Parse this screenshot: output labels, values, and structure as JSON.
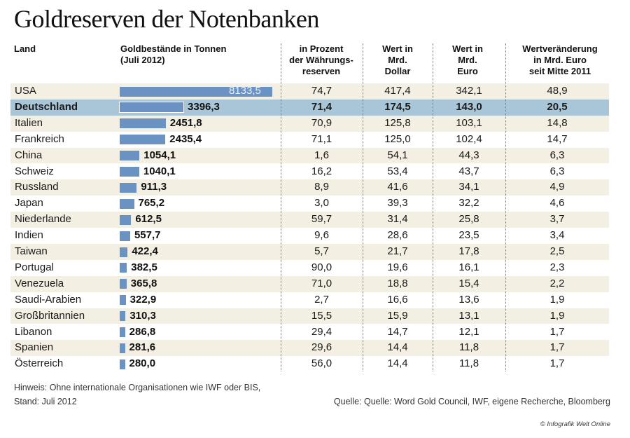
{
  "title": "Goldreserven der Notenbanken",
  "headers": {
    "land": "Land",
    "gold_line1": "Goldbestände in Tonnen",
    "gold_line2": "(Juli 2012)",
    "pct_line1": "in Prozent",
    "pct_line2": "der Währungs-",
    "pct_line3": "reserven",
    "usd_line1": "Wert in",
    "usd_line2": "Mrd.",
    "usd_line3": "Dollar",
    "eur_line1": "Wert in",
    "eur_line2": "Mrd.",
    "eur_line3": "Euro",
    "chg_line1": "Wertveränderung",
    "chg_line2": "in Mrd. Euro",
    "chg_line3": "seit Mitte 2011"
  },
  "chart_data": {
    "type": "table",
    "columns": [
      "Land",
      "Goldbestände in Tonnen (Juli 2012)",
      "in Prozent der Währungsreserven",
      "Wert in Mrd. Dollar",
      "Wert in Mrd. Euro",
      "Wertveränderung in Mrd. Euro seit Mitte 2011"
    ],
    "rows": [
      {
        "land": "USA",
        "tonnen": 8133.5,
        "tonnen_label": "8133,5",
        "prozent": "74,7",
        "dollar": "417,4",
        "euro": "342,1",
        "veraenderung": "48,9"
      },
      {
        "land": "Deutschland",
        "tonnen": 3396.3,
        "tonnen_label": "3396,3",
        "prozent": "71,4",
        "dollar": "174,5",
        "euro": "143,0",
        "veraenderung": "20,5",
        "highlight": true
      },
      {
        "land": "Italien",
        "tonnen": 2451.8,
        "tonnen_label": "2451,8",
        "prozent": "70,9",
        "dollar": "125,8",
        "euro": "103,1",
        "veraenderung": "14,8"
      },
      {
        "land": "Frankreich",
        "tonnen": 2435.4,
        "tonnen_label": "2435,4",
        "prozent": "71,1",
        "dollar": "125,0",
        "euro": "102,4",
        "veraenderung": "14,7"
      },
      {
        "land": "China",
        "tonnen": 1054.1,
        "tonnen_label": "1054,1",
        "prozent": "1,6",
        "dollar": "54,1",
        "euro": "44,3",
        "veraenderung": "6,3"
      },
      {
        "land": "Schweiz",
        "tonnen": 1040.1,
        "tonnen_label": "1040,1",
        "prozent": "16,2",
        "dollar": "53,4",
        "euro": "43,7",
        "veraenderung": "6,3"
      },
      {
        "land": "Russland",
        "tonnen": 911.3,
        "tonnen_label": "911,3",
        "prozent": "8,9",
        "dollar": "41,6",
        "euro": "34,1",
        "veraenderung": "4,9"
      },
      {
        "land": "Japan",
        "tonnen": 765.2,
        "tonnen_label": "765,2",
        "prozent": "3,0",
        "dollar": "39,3",
        "euro": "32,2",
        "veraenderung": "4,6"
      },
      {
        "land": "Niederlande",
        "tonnen": 612.5,
        "tonnen_label": "612,5",
        "prozent": "59,7",
        "dollar": "31,4",
        "euro": "25,8",
        "veraenderung": "3,7"
      },
      {
        "land": "Indien",
        "tonnen": 557.7,
        "tonnen_label": "557,7",
        "prozent": "9,6",
        "dollar": "28,6",
        "euro": "23,5",
        "veraenderung": "3,4"
      },
      {
        "land": "Taiwan",
        "tonnen": 422.4,
        "tonnen_label": "422,4",
        "prozent": "5,7",
        "dollar": "21,7",
        "euro": "17,8",
        "veraenderung": "2,5"
      },
      {
        "land": "Portugal",
        "tonnen": 382.5,
        "tonnen_label": "382,5",
        "prozent": "90,0",
        "dollar": "19,6",
        "euro": "16,1",
        "veraenderung": "2,3"
      },
      {
        "land": "Venezuela",
        "tonnen": 365.8,
        "tonnen_label": "365,8",
        "prozent": "71,0",
        "dollar": "18,8",
        "euro": "15,4",
        "veraenderung": "2,2"
      },
      {
        "land": "Saudi-Arabien",
        "tonnen": 322.9,
        "tonnen_label": "322,9",
        "prozent": "2,7",
        "dollar": "16,6",
        "euro": "13,6",
        "veraenderung": "1,9"
      },
      {
        "land": "Großbritannien",
        "tonnen": 310.3,
        "tonnen_label": "310,3",
        "prozent": "15,5",
        "dollar": "15,9",
        "euro": "13,1",
        "veraenderung": "1,9"
      },
      {
        "land": "Libanon",
        "tonnen": 286.8,
        "tonnen_label": "286,8",
        "prozent": "29,4",
        "dollar": "14,7",
        "euro": "12,1",
        "veraenderung": "1,7"
      },
      {
        "land": "Spanien",
        "tonnen": 281.6,
        "tonnen_label": "281,6",
        "prozent": "29,6",
        "dollar": "14,4",
        "euro": "11,8",
        "veraenderung": "1,7"
      },
      {
        "land": "Österreich",
        "tonnen": 280.0,
        "tonnen_label": "280,0",
        "prozent": "56,0",
        "dollar": "14,4",
        "euro": "11,8",
        "veraenderung": "1,7"
      }
    ]
  },
  "colors": {
    "bar": "#6a93c4",
    "row_stripe": "#f4efe3",
    "row_highlight": "#a9c6d8"
  },
  "footer": {
    "note_line1": "Hinweis: Ohne internationale Organisationen wie IWF oder BIS,",
    "note_line2": "Stand: Juli 2012",
    "source": "Quelle: Quelle: Word Gold Council, IWF, eigene Recherche, Bloomberg",
    "credit": "© Infografik Welt Online"
  }
}
